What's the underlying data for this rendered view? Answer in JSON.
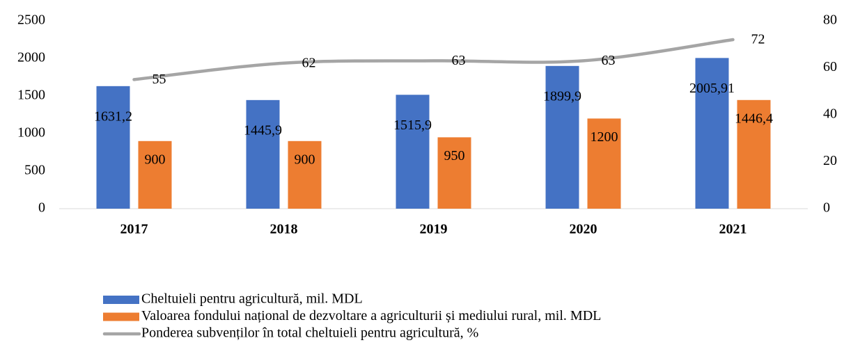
{
  "chart_data": {
    "type": "bar",
    "categories": [
      "2017",
      "2018",
      "2019",
      "2020",
      "2021"
    ],
    "series": [
      {
        "name": "Cheltuieli pentru agricultură, mil. MDL",
        "color": "#4472c4",
        "values": [
          1631.2,
          1445.9,
          1515.9,
          1899.9,
          2005.91
        ],
        "value_labels": [
          "1631,2",
          "1445,9",
          "1515,9",
          "1899,9",
          "2005,91"
        ]
      },
      {
        "name": "Valoarea fondului național de dezvoltare a agriculturii și mediului rural, mil. MDL",
        "color": "#ed7d31",
        "values": [
          900,
          900,
          950,
          1200,
          1446.4
        ],
        "value_labels": [
          "900",
          "900",
          "950",
          "1200",
          "1446,4"
        ]
      },
      {
        "name": "Ponderea subvenților în total cheltuieli pentru agricultură, %",
        "color": "#a5a5a5",
        "type": "line",
        "axis": "y2",
        "values": [
          55,
          62,
          63,
          63,
          72
        ]
      }
    ],
    "ylim": [
      0,
      2500
    ],
    "yticks": [
      0,
      500,
      1000,
      1500,
      2000,
      2500
    ],
    "y2lim": [
      0,
      80
    ],
    "y2ticks": [
      0,
      20,
      40,
      60,
      80
    ],
    "grid": false,
    "legend": "bottom"
  }
}
